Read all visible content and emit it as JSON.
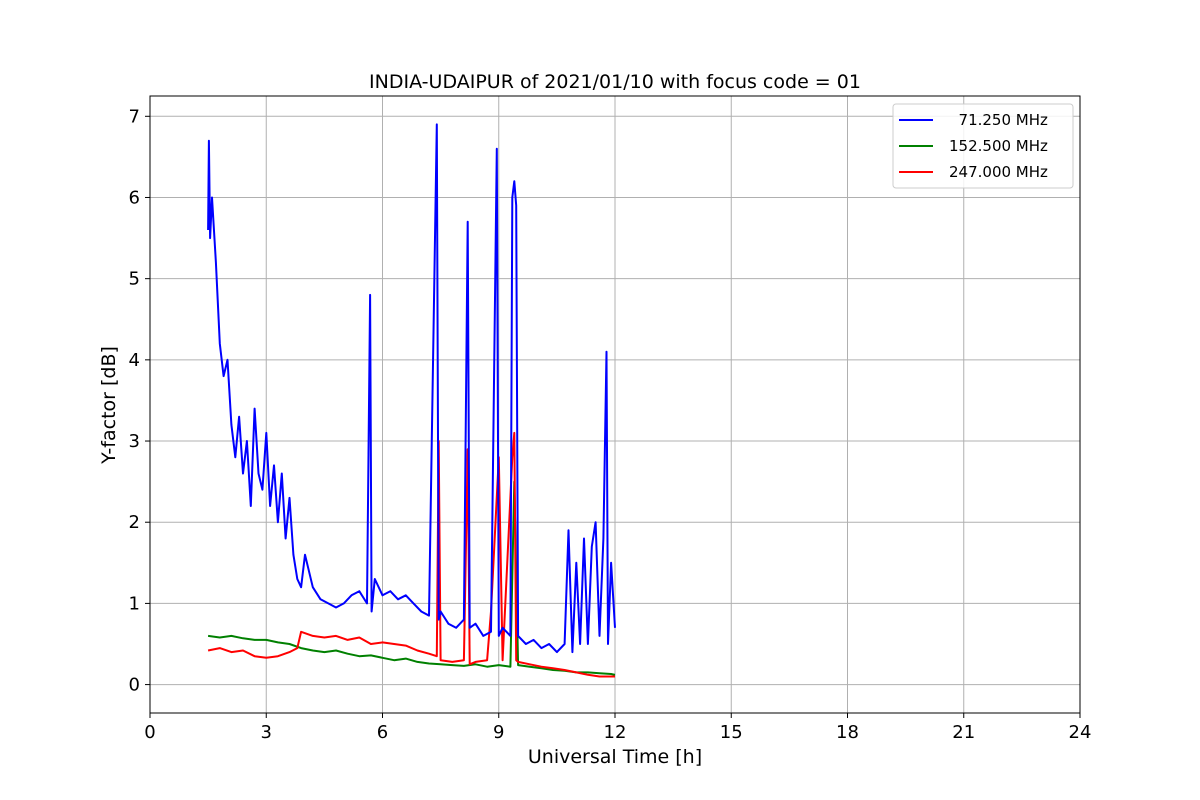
{
  "chart_data": {
    "type": "line",
    "title": "INDIA-UDAIPUR of 2021/01/10 with focus code = 01",
    "xlabel": "Universal Time [h]",
    "ylabel": "Y-factor [dB]",
    "xlim": [
      0,
      24
    ],
    "ylim": [
      -0.35,
      7.25
    ],
    "xticks": [
      0,
      3,
      6,
      9,
      12,
      15,
      18,
      21,
      24
    ],
    "yticks": [
      0,
      1,
      2,
      3,
      4,
      5,
      6,
      7
    ],
    "grid": true,
    "legend_position": "top-right",
    "series": [
      {
        "name": "  71.250 MHz",
        "color": "#0000ff",
        "x": [
          1.5,
          1.52,
          1.55,
          1.6,
          1.7,
          1.8,
          1.9,
          2.0,
          2.1,
          2.2,
          2.3,
          2.4,
          2.5,
          2.6,
          2.7,
          2.8,
          2.9,
          3.0,
          3.1,
          3.2,
          3.3,
          3.4,
          3.5,
          3.6,
          3.7,
          3.8,
          3.9,
          4.0,
          4.2,
          4.4,
          4.6,
          4.8,
          5.0,
          5.2,
          5.4,
          5.6,
          5.68,
          5.72,
          5.8,
          6.0,
          6.2,
          6.4,
          6.6,
          6.8,
          7.0,
          7.2,
          7.4,
          7.45,
          7.5,
          7.7,
          7.9,
          8.1,
          8.2,
          8.25,
          8.4,
          8.6,
          8.8,
          8.95,
          9.0,
          9.1,
          9.3,
          9.35,
          9.4,
          9.45,
          9.5,
          9.7,
          9.9,
          10.1,
          10.3,
          10.5,
          10.7,
          10.8,
          10.9,
          11.0,
          11.1,
          11.2,
          11.3,
          11.4,
          11.5,
          11.6,
          11.7,
          11.78,
          11.82,
          11.9,
          12.0
        ],
        "y": [
          5.6,
          6.7,
          5.5,
          6.0,
          5.2,
          4.2,
          3.8,
          4.0,
          3.2,
          2.8,
          3.3,
          2.6,
          3.0,
          2.2,
          3.4,
          2.6,
          2.4,
          3.1,
          2.2,
          2.7,
          2.0,
          2.6,
          1.8,
          2.3,
          1.6,
          1.3,
          1.2,
          1.6,
          1.2,
          1.05,
          1.0,
          0.95,
          1.0,
          1.1,
          1.15,
          1.0,
          4.8,
          0.9,
          1.3,
          1.1,
          1.15,
          1.05,
          1.1,
          1.0,
          0.9,
          0.85,
          6.9,
          0.8,
          0.9,
          0.75,
          0.7,
          0.8,
          5.7,
          0.7,
          0.75,
          0.6,
          0.65,
          6.6,
          0.6,
          0.7,
          0.6,
          6.0,
          6.2,
          5.9,
          0.6,
          0.5,
          0.55,
          0.45,
          0.5,
          0.4,
          0.5,
          1.9,
          0.4,
          1.5,
          0.5,
          1.8,
          0.5,
          1.7,
          2.0,
          0.6,
          1.8,
          4.1,
          0.5,
          1.5,
          0.7
        ]
      },
      {
        "name": "152.500 MHz",
        "color": "#008000",
        "x": [
          1.5,
          1.8,
          2.1,
          2.4,
          2.7,
          3.0,
          3.3,
          3.6,
          3.9,
          4.2,
          4.5,
          4.8,
          5.1,
          5.4,
          5.7,
          6.0,
          6.3,
          6.6,
          6.9,
          7.2,
          7.5,
          7.8,
          8.1,
          8.4,
          8.7,
          9.0,
          9.3,
          9.4,
          9.5,
          9.8,
          10.1,
          10.4,
          10.7,
          11.0,
          11.3,
          11.6,
          11.9,
          12.0
        ],
        "y": [
          0.6,
          0.58,
          0.6,
          0.57,
          0.55,
          0.55,
          0.52,
          0.5,
          0.45,
          0.42,
          0.4,
          0.42,
          0.38,
          0.35,
          0.36,
          0.33,
          0.3,
          0.32,
          0.28,
          0.26,
          0.25,
          0.24,
          0.23,
          0.25,
          0.22,
          0.24,
          0.22,
          2.5,
          0.24,
          0.22,
          0.2,
          0.18,
          0.17,
          0.15,
          0.15,
          0.14,
          0.13,
          0.12
        ]
      },
      {
        "name": "247.000 MHz",
        "color": "#ff0000",
        "x": [
          1.5,
          1.8,
          2.1,
          2.4,
          2.7,
          3.0,
          3.3,
          3.6,
          3.8,
          3.9,
          4.2,
          4.5,
          4.8,
          5.1,
          5.4,
          5.7,
          6.0,
          6.3,
          6.6,
          6.9,
          7.2,
          7.4,
          7.45,
          7.5,
          7.8,
          8.1,
          8.2,
          8.25,
          8.4,
          8.7,
          8.8,
          9.0,
          9.1,
          9.35,
          9.4,
          9.45,
          9.5,
          9.8,
          10.1,
          10.4,
          10.7,
          11.0,
          11.3,
          11.6,
          11.9,
          12.0
        ],
        "y": [
          0.42,
          0.45,
          0.4,
          0.42,
          0.35,
          0.33,
          0.35,
          0.4,
          0.45,
          0.65,
          0.6,
          0.58,
          0.6,
          0.55,
          0.58,
          0.5,
          0.52,
          0.5,
          0.48,
          0.42,
          0.38,
          0.35,
          3.0,
          0.3,
          0.28,
          0.3,
          2.9,
          0.25,
          0.28,
          0.3,
          0.9,
          2.8,
          0.3,
          2.8,
          3.1,
          0.3,
          0.28,
          0.25,
          0.22,
          0.2,
          0.18,
          0.15,
          0.12,
          0.1,
          0.1,
          0.1
        ]
      }
    ]
  }
}
